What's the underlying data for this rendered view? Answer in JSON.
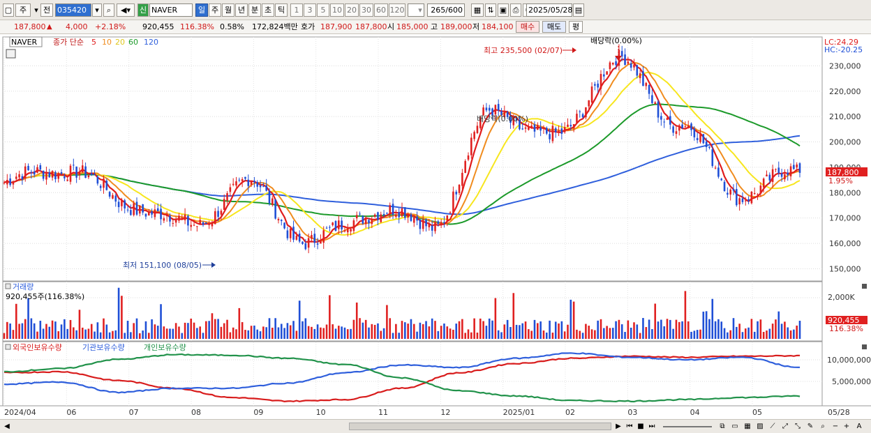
{
  "toolbar": {
    "period_week": "주",
    "prev": "전",
    "code": "035420",
    "new_tag": "신",
    "stock_name": "NAVER",
    "timeframes": [
      "일",
      "주",
      "월",
      "년",
      "분",
      "초",
      "틱"
    ],
    "multipliers": [
      "1",
      "3",
      "5",
      "10",
      "20",
      "30",
      "60",
      "120"
    ],
    "count": "265",
    "count_total": "/600",
    "date": "2025/05/28"
  },
  "quote": {
    "price": "187,800",
    "change_arrow": "▲",
    "change": "4,000",
    "change_pct": "+2.18%",
    "volume": "920,455",
    "volume_ratio": "116.38%",
    "turnover_pct": "0.58%",
    "amount": "172,824백만",
    "quote_label": "호가",
    "ask": "187,900",
    "bid": "187,800",
    "open_label": "시",
    "open": "185,000",
    "high_label": "고",
    "high": "189,000",
    "low_label": "저",
    "low": "184,100",
    "buy": "매수",
    "sell": "매도",
    "eval": "평"
  },
  "legend": {
    "stock": "NAVER",
    "type": "종가 단순",
    "ma": [
      "5",
      "10",
      "20",
      "60",
      "120"
    ],
    "lc": "LC:24.29",
    "hc": "HC:-20.25"
  },
  "annotations": {
    "high": "최고 235,500 (02/07)",
    "low": "최저 151,100 (08/05)",
    "dividend1": "배당락(0.00%)",
    "dividend2": "배당락(0.00%)"
  },
  "price_tag": {
    "value": "187,800",
    "pct": "1.95%"
  },
  "volume_panel": {
    "title": "거래량",
    "value_label": "920,455주(116.38%)",
    "axis": [
      "2,000K"
    ],
    "tag_value": "920,455",
    "tag_pct": "116.38%"
  },
  "holding_panel": {
    "series": [
      "외국인보유수량",
      "기관보유수량",
      "개인보유수량"
    ],
    "axis": [
      "10,000,000",
      "5,000,000"
    ]
  },
  "x_axis": [
    "2024/04",
    "06",
    "07",
    "08",
    "09",
    "10",
    "11",
    "12",
    "2025/01",
    "02",
    "03",
    "04",
    "05",
    "05/28"
  ],
  "colors": {
    "up": "#e02020",
    "down": "#1f4fd6",
    "ma5": "#e01c1c",
    "ma10": "#f08c1e",
    "ma20": "#f7e61e",
    "ma60": "#1c9a2a",
    "ma120": "#2f5fdc",
    "foreign": "#d81c1c",
    "institution": "#2f5fdc",
    "individual": "#21924a"
  },
  "chart_data": [
    {
      "type": "candlestick",
      "title": "NAVER",
      "ylim": [
        146000,
        240000
      ],
      "y_ticks": [
        150000,
        160000,
        170000,
        180000,
        190000,
        200000,
        210000,
        220000,
        230000
      ],
      "x": [
        "2024-04",
        "2024-05",
        "2024-06",
        "2024-07",
        "2024-08",
        "2024-09",
        "2024-10",
        "2024-11",
        "2024-12",
        "2025-01",
        "2025-02",
        "2025-03",
        "2025-04",
        "2025-05"
      ],
      "close_points": [
        184000,
        190000,
        176000,
        167000,
        183000,
        160000,
        173000,
        168000,
        212000,
        201000,
        232000,
        208000,
        180000,
        187800
      ],
      "high": 235500,
      "high_date": "2025-02-07",
      "low": 151100,
      "low_date": "2024-08-05",
      "last": 187800
    },
    {
      "type": "bar",
      "title": "거래량",
      "last": 920455
    },
    {
      "type": "line",
      "series": [
        {
          "name": "외국인보유수량"
        },
        {
          "name": "기관보유수량"
        },
        {
          "name": "개인보유수량"
        }
      ],
      "y_ticks": [
        5000000,
        10000000
      ]
    }
  ]
}
